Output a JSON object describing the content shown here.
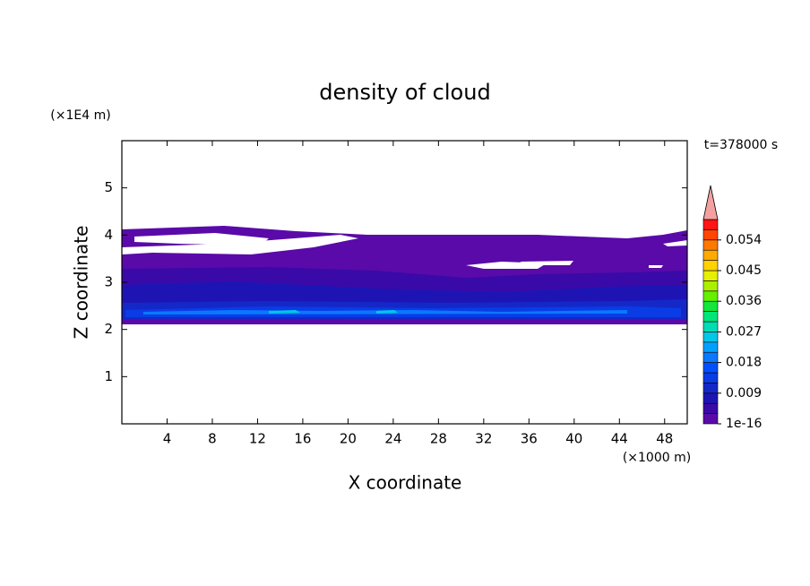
{
  "chart_data": {
    "type": "contour",
    "title": "density of cloud",
    "time_label": "t=378000 s",
    "x_label": "X coordinate",
    "x_unit": "(×1000 m)",
    "y_label": "Z coordinate",
    "y_unit": "(×1E4 m)",
    "xlim": [
      0,
      50
    ],
    "xticks": [
      4,
      8,
      12,
      16,
      20,
      24,
      28,
      32,
      36,
      40,
      44,
      48
    ],
    "ylim": [
      0,
      6
    ],
    "yticks": [
      1,
      2,
      3,
      4,
      5
    ],
    "colorbar": {
      "lim": [
        1e-16,
        0.06
      ],
      "ticks": [
        1e-16,
        0.009,
        0.018,
        0.027,
        0.036,
        0.045,
        0.054
      ],
      "colors": [
        "#5a0aa8",
        "#3a0aa8",
        "#1e14b4",
        "#1428c8",
        "#0a3ce6",
        "#0050ff",
        "#0a78ff",
        "#00a0ff",
        "#00c8e6",
        "#00dcb4",
        "#00e678",
        "#14e63c",
        "#64f000",
        "#aaf000",
        "#e6f000",
        "#ffd200",
        "#ffaa00",
        "#ff7800",
        "#ff4600",
        "#ff1414"
      ],
      "over_color": "#f4a0a0"
    }
  }
}
